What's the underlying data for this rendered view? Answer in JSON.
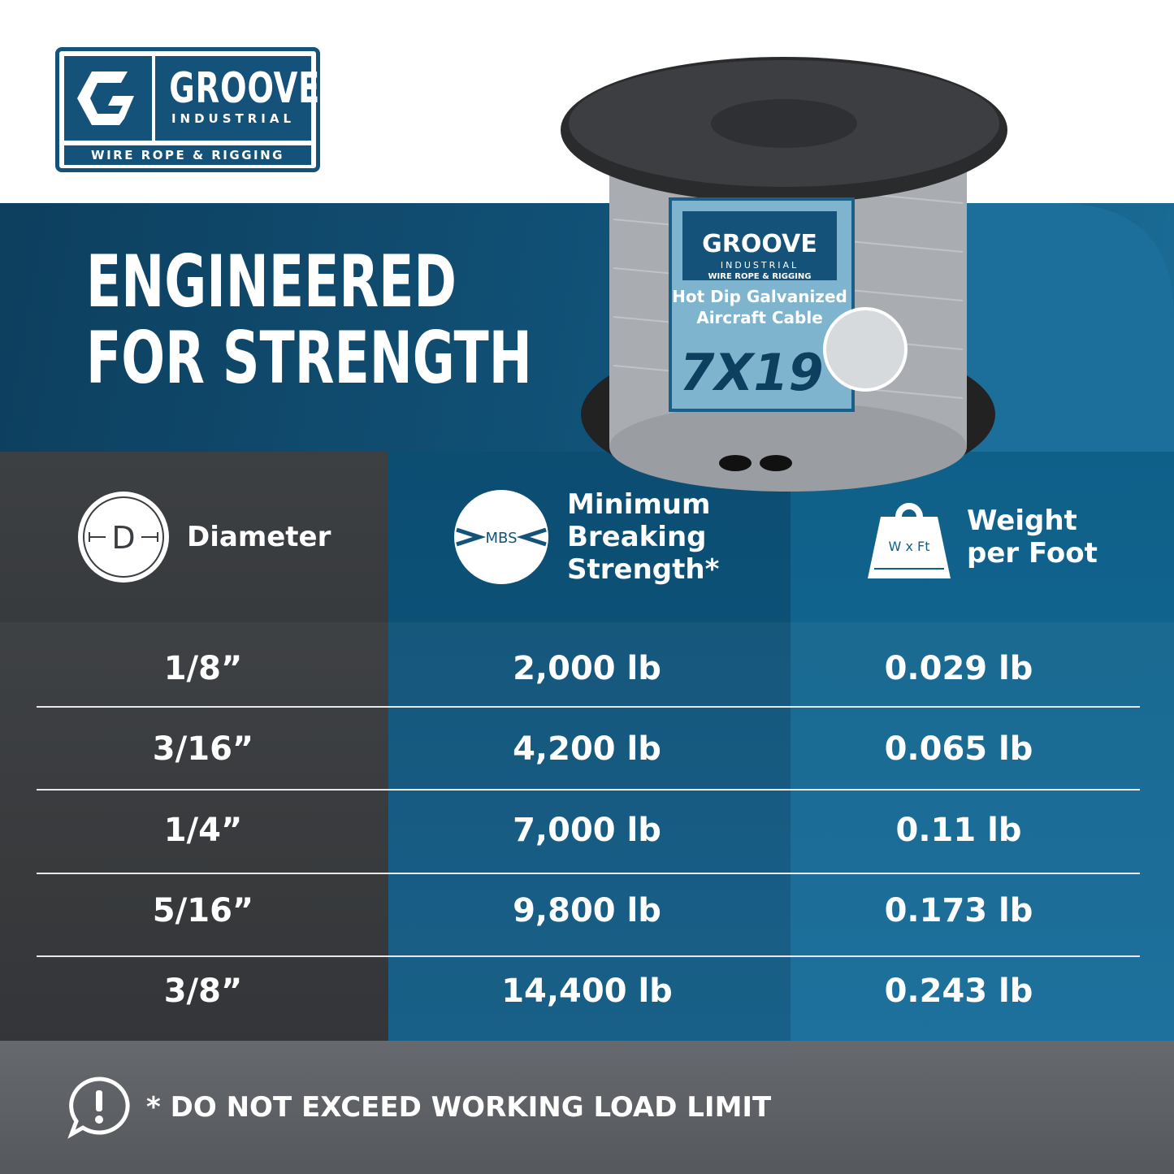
{
  "brand": {
    "name": "GROOVE",
    "sub": "INDUSTRIAL",
    "tagline": "WIRE ROPE & RIGGING",
    "logo_letter": "G",
    "color": "#14527a"
  },
  "headline": [
    "ENGINEERED",
    "FOR STRENGTH"
  ],
  "product_label": {
    "brand": "GROOVE",
    "sub": "INDUSTRIAL",
    "tagline": "WIRE ROPE & RIGGING",
    "title1": "Hot Dip Galvanized",
    "title2": "Aircraft Cable",
    "code": "7X19"
  },
  "table": {
    "headers": [
      {
        "icon": "diameter-icon",
        "icon_text": "D",
        "label": "Diameter"
      },
      {
        "icon": "mbs-icon",
        "icon_text": "MBS",
        "label_lines": [
          "Minimum",
          "Breaking",
          "Strength*"
        ]
      },
      {
        "icon": "weight-icon",
        "icon_text": "W x Ft",
        "label_lines": [
          "Weight",
          "per Foot"
        ]
      }
    ],
    "rows": [
      {
        "diameter": "1/8”",
        "mbs": "2,000 lb",
        "weight": "0.029 lb"
      },
      {
        "diameter": "3/16”",
        "mbs": "4,200 lb",
        "weight": "0.065 lb"
      },
      {
        "diameter": "1/4”",
        "mbs": "7,000 lb",
        "weight": "0.11 lb"
      },
      {
        "diameter": "5/16”",
        "mbs": "9,800 lb",
        "weight": "0.173 lb"
      },
      {
        "diameter": "3/8”",
        "mbs": "14,400 lb",
        "weight": "0.243 lb"
      }
    ]
  },
  "footer": {
    "icon": "alert-speech-icon",
    "text": "* DO NOT EXCEED WORKING LOAD LIMIT"
  }
}
